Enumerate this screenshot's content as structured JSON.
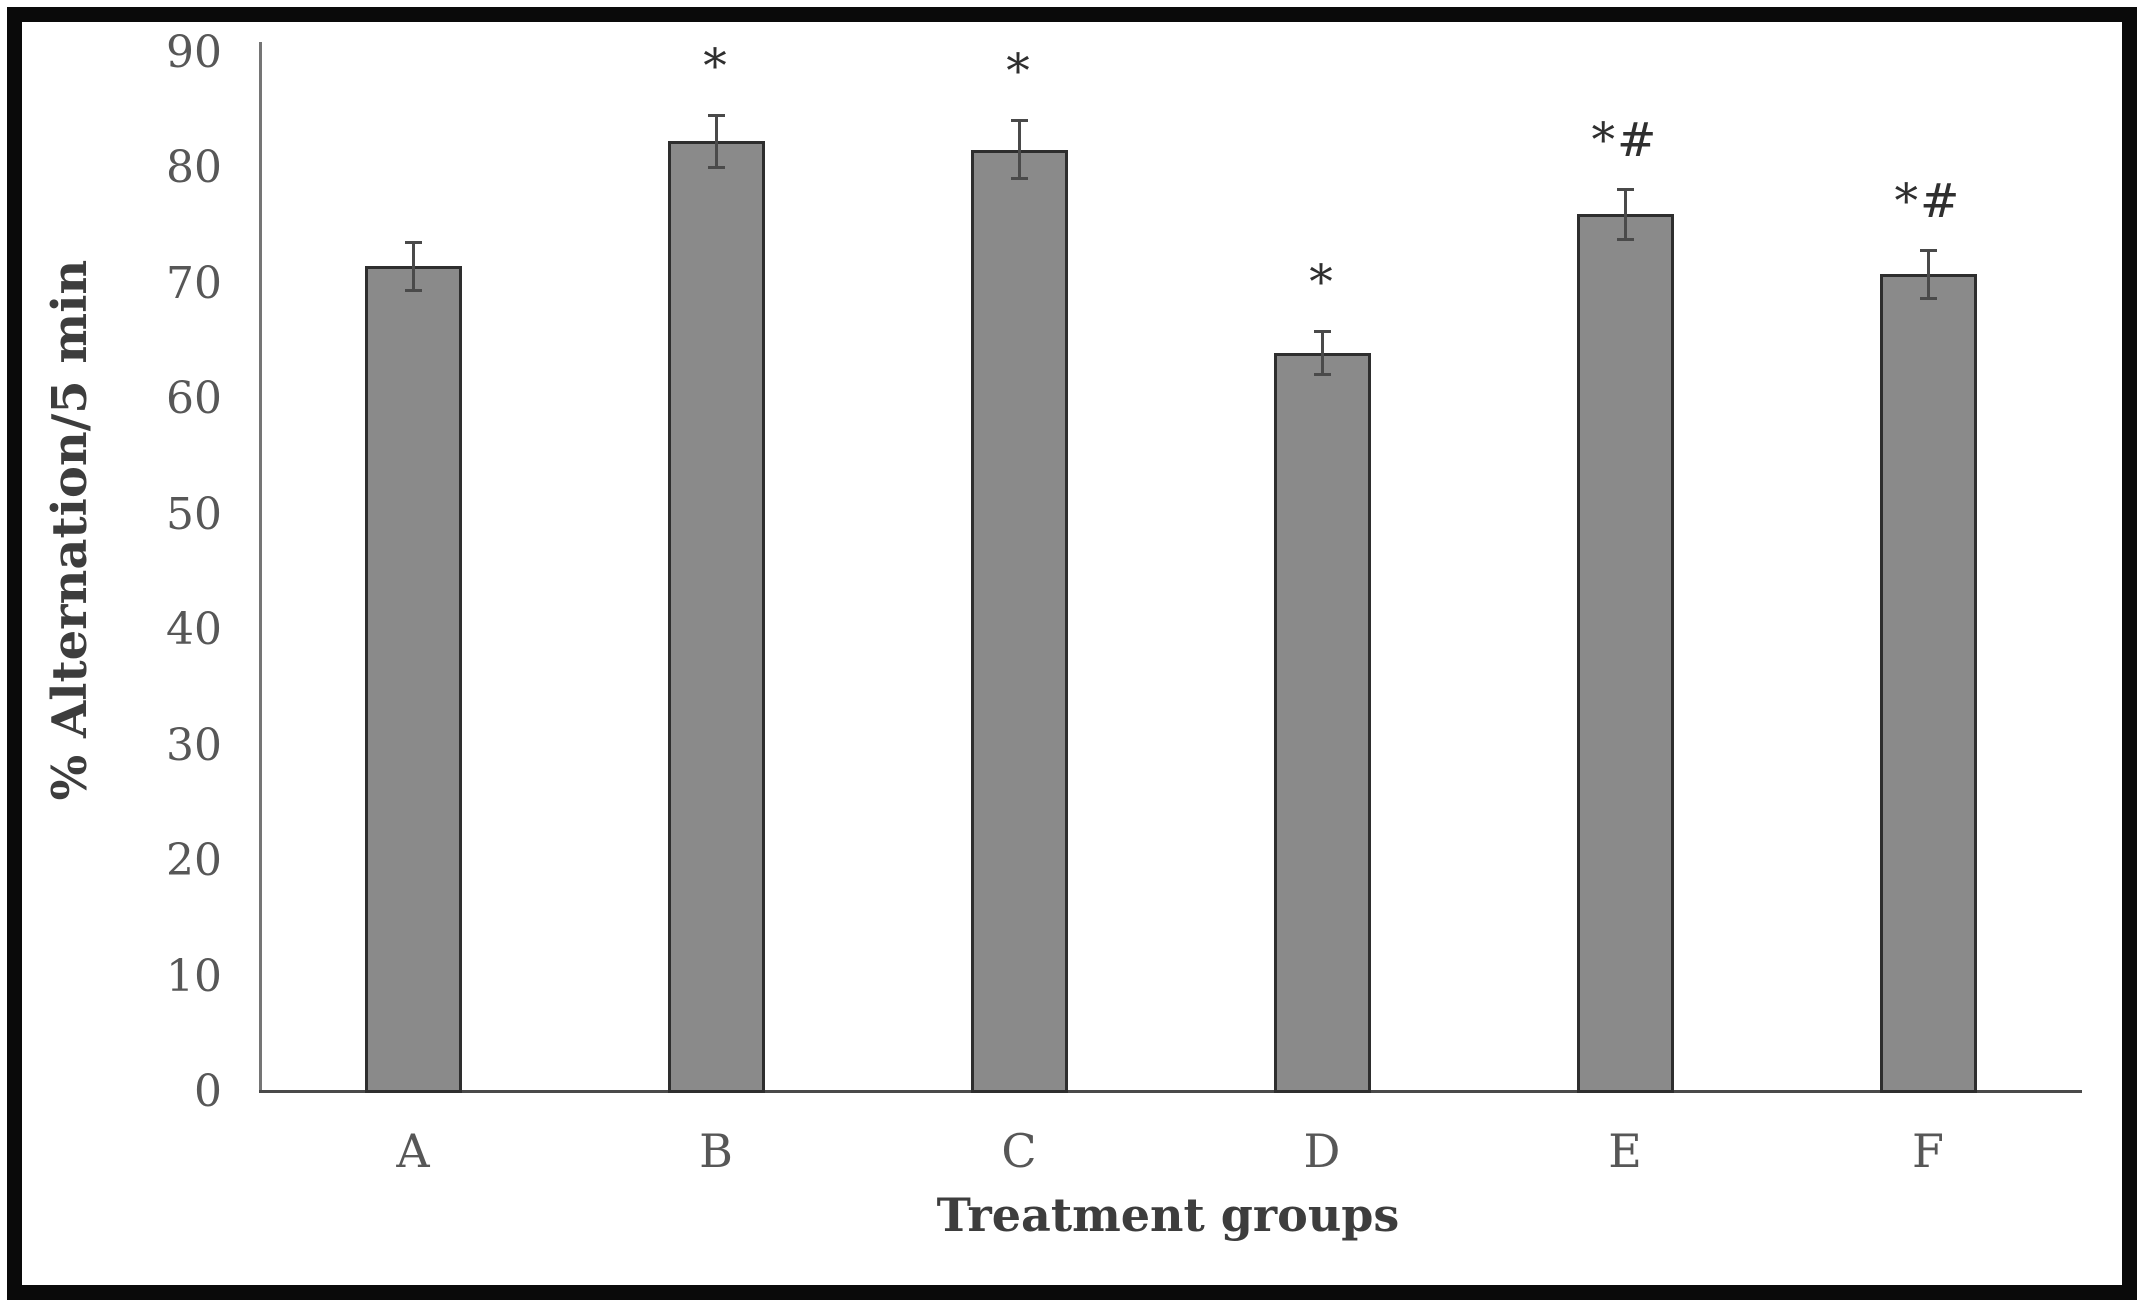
{
  "figure": {
    "background": "#ffffff",
    "border_color": "#0a0a0a",
    "bar_color": "#8a8a8a",
    "bar_border_color": "#2e2e2e",
    "error_bar_color": "#4a4a4a",
    "axis_color": "#757575",
    "tick_text_color": "#575757",
    "title_text_color": "#3d3d3d"
  },
  "chart_data": {
    "type": "bar",
    "title": "",
    "xlabel": "Treatment groups",
    "ylabel": "% Alternation/5 min",
    "categories": [
      "A",
      "B",
      "C",
      "D",
      "E",
      "F"
    ],
    "values": [
      71.5,
      82.3,
      81.6,
      64.0,
      76.0,
      70.8
    ],
    "error_bars": [
      2.2,
      2.4,
      2.6,
      2.0,
      2.3,
      2.2
    ],
    "annotations": [
      "",
      "*",
      "*",
      "*",
      "*#",
      "*#"
    ],
    "ylim": [
      0,
      90
    ],
    "ytick_interval": 10,
    "yticks": [
      0,
      10,
      20,
      30,
      40,
      50,
      60,
      70,
      80,
      90
    ],
    "grid": false,
    "legend": false,
    "series_name": "% alternation per 5 min"
  }
}
